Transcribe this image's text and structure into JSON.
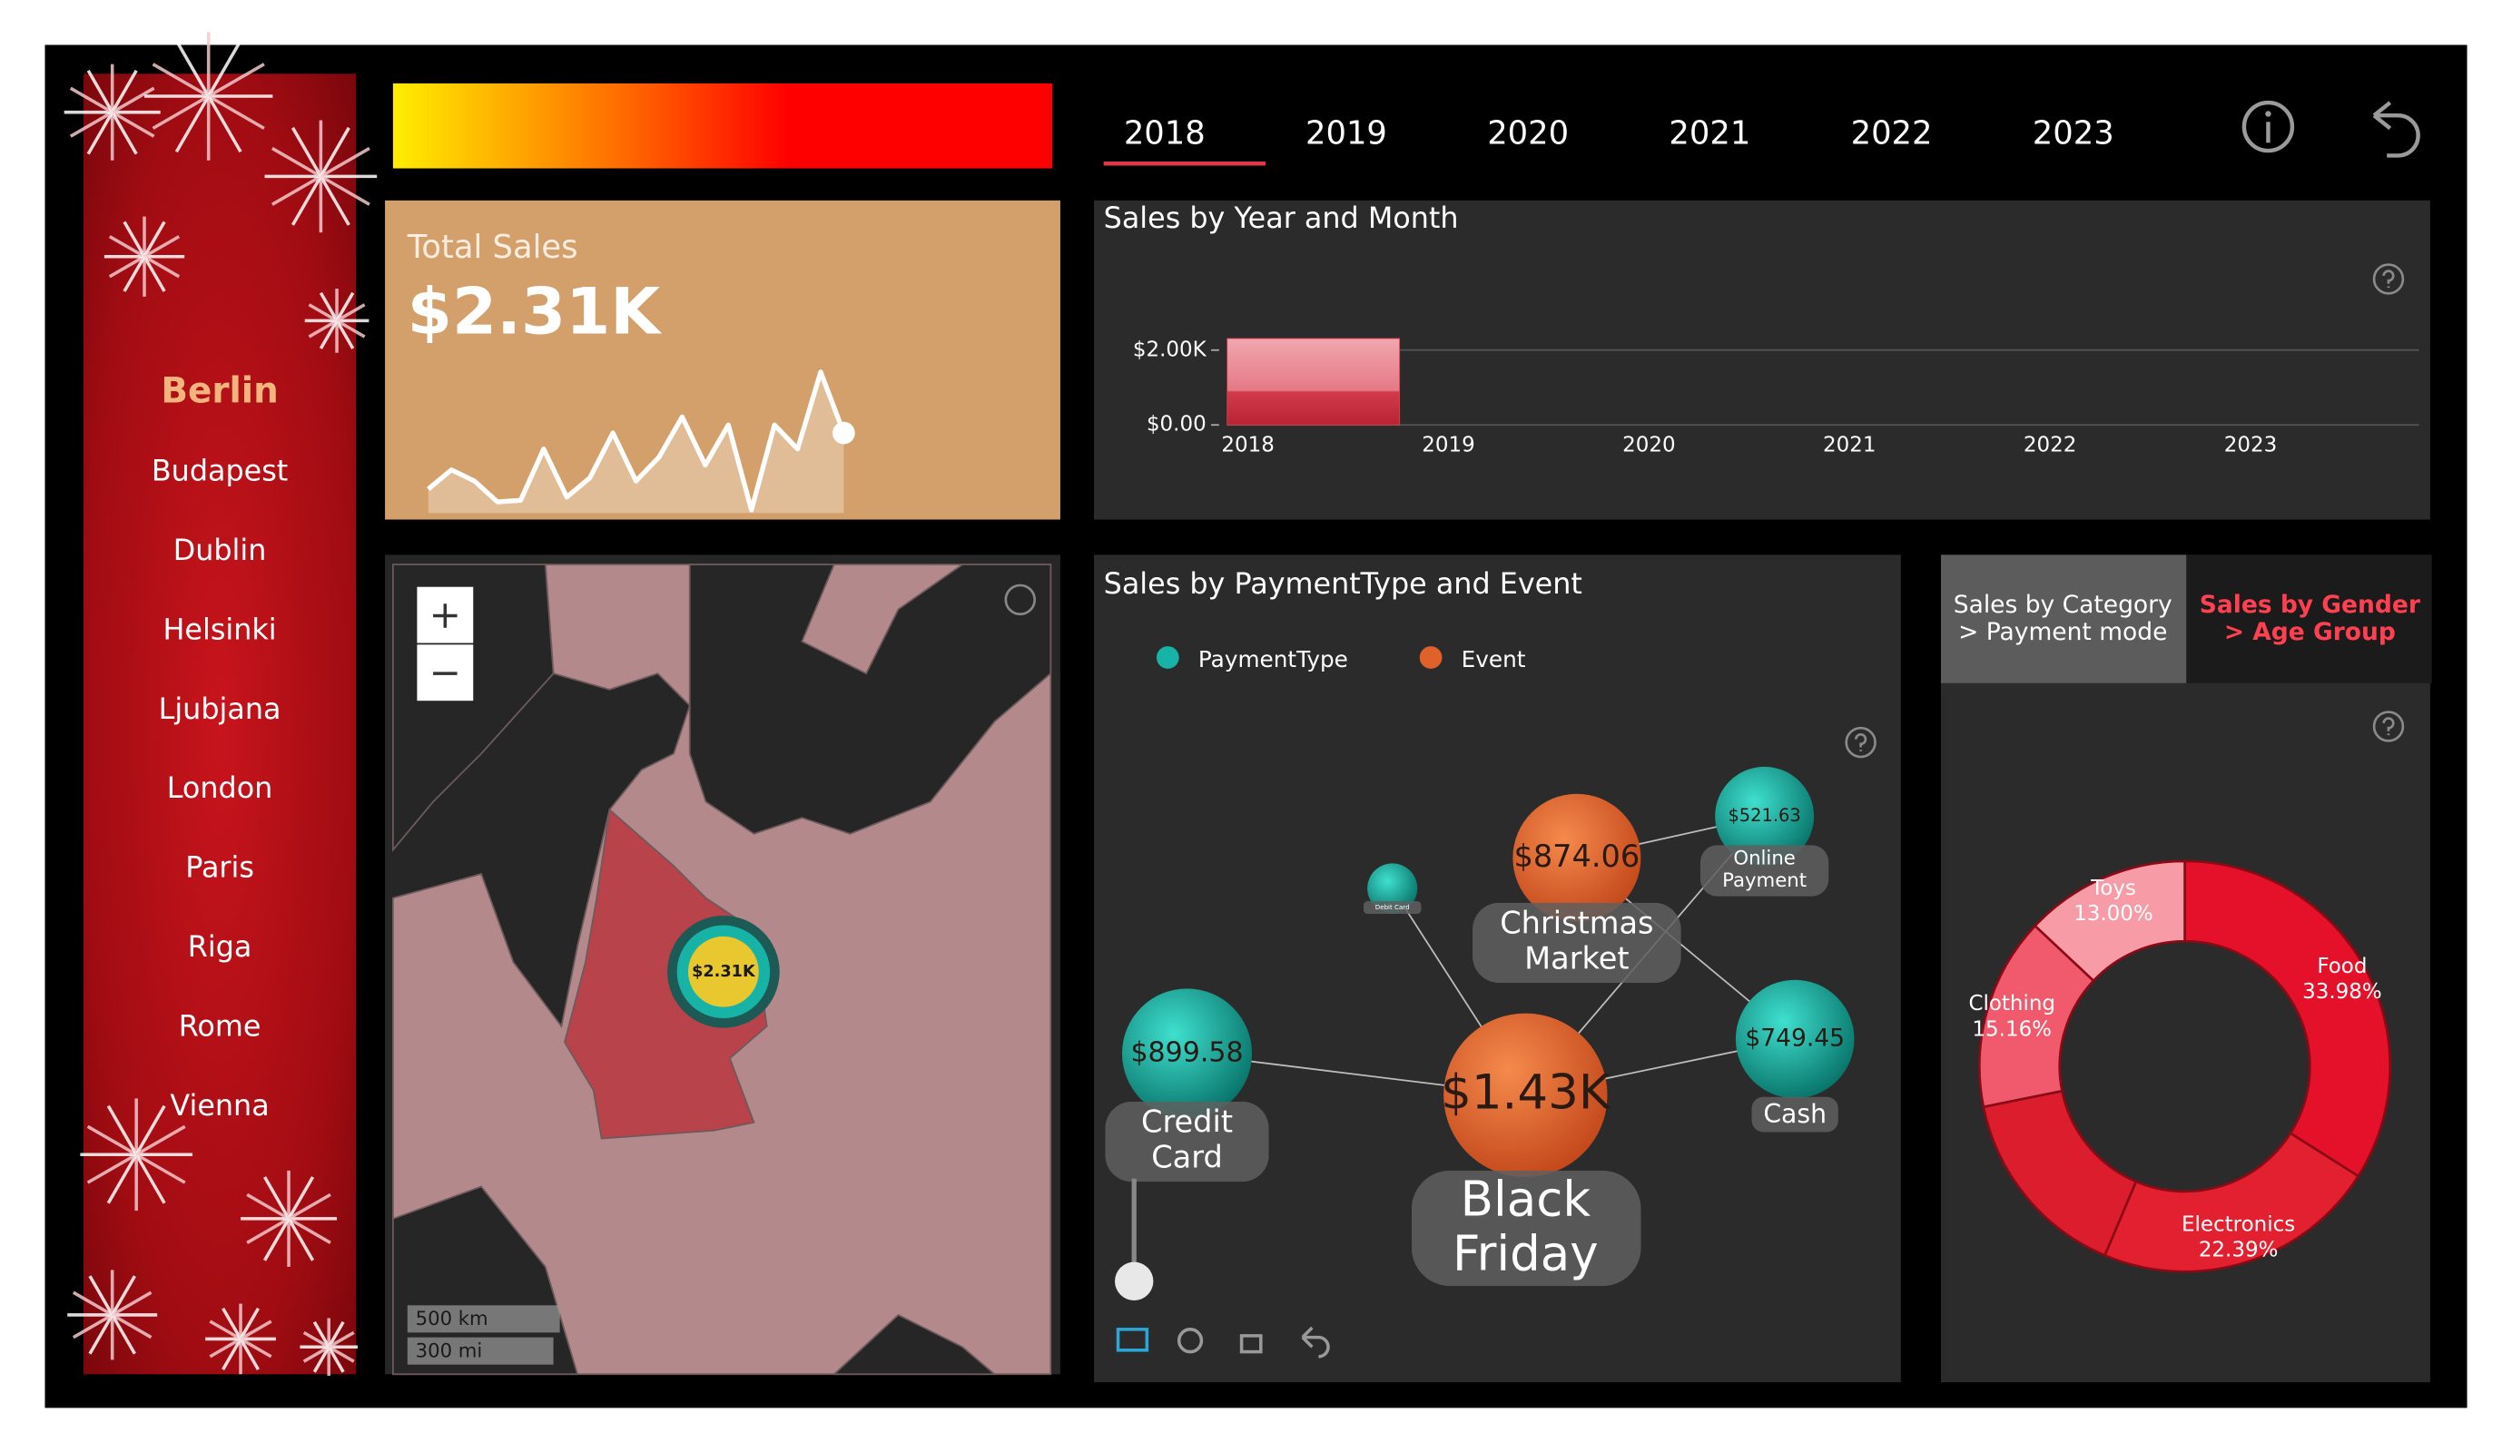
{
  "cities": [
    "Berlin",
    "Budapest",
    "Dublin",
    "Helsinki",
    "Ljubjana",
    "London",
    "Paris",
    "Riga",
    "Rome",
    "Vienna"
  ],
  "years": [
    "2018",
    "2019",
    "2020",
    "2021",
    "2022",
    "2023"
  ],
  "kpi": {
    "label": "Total Sales",
    "value": "$2.31K"
  },
  "map": {
    "bubble_label": "$2.31K",
    "scale": [
      "500 km",
      "300 mi"
    ]
  },
  "tabs": [
    "Sales by Category > Payment mode",
    "Sales by Gender > Age Group"
  ],
  "chart_data": [
    {
      "type": "area",
      "color": "#ffffff",
      "values": [
        15,
        27,
        20,
        7,
        8,
        40,
        10,
        22,
        50,
        20,
        35,
        60,
        30,
        55,
        2,
        55,
        40,
        88,
        50
      ],
      "ylim": [
        0,
        100
      ]
    },
    {
      "type": "bar",
      "title": "Sales by Year and Month",
      "categories": [
        "2018",
        "2019",
        "2020",
        "2021",
        "2022",
        "2023"
      ],
      "values": [
        2310,
        null,
        null,
        null,
        null,
        null
      ],
      "color": "#d8404f",
      "ylim": [
        0,
        2400
      ],
      "yticks": [
        {
          "value": 0,
          "label": "$0.00"
        },
        {
          "value": 2000,
          "label": "$2.00K"
        }
      ],
      "grid": true
    },
    {
      "type": "network",
      "title": "Sales by PaymentType and Event",
      "series": [
        {
          "name": "PaymentType",
          "color": "#17b3a6"
        },
        {
          "name": "Event",
          "color": "#e0622a"
        }
      ],
      "nodes": [
        {
          "name": "Black Friday",
          "group": "Event",
          "value": 1430,
          "value_label": "$1.43K"
        },
        {
          "name": "Christmas Market",
          "group": "Event",
          "value": 874.06,
          "value_label": "$874.06"
        },
        {
          "name": "Credit Card",
          "group": "PaymentType",
          "value": 899.58,
          "value_label": "$899.58"
        },
        {
          "name": "Online Payment",
          "group": "PaymentType",
          "value": 521.63,
          "value_label": "$521.63"
        },
        {
          "name": "Cash",
          "group": "PaymentType",
          "value": 749.45,
          "value_label": "$749.45"
        },
        {
          "name": "Debit Card",
          "group": "PaymentType",
          "value": 133.4,
          "value_label": null
        }
      ],
      "links": [
        {
          "source": "Black Friday",
          "target": "Credit Card"
        },
        {
          "source": "Black Friday",
          "target": "Cash"
        },
        {
          "source": "Black Friday",
          "target": "Online Payment"
        },
        {
          "source": "Black Friday",
          "target": "Debit Card"
        },
        {
          "source": "Christmas Market",
          "target": "Online Payment"
        },
        {
          "source": "Christmas Market",
          "target": "Cash"
        }
      ]
    },
    {
      "type": "donut",
      "categories": [
        "Food",
        "Electronics",
        null,
        "Clothing",
        "Toys"
      ],
      "values": [
        33.98,
        22.39,
        15.47,
        15.16,
        13.0
      ],
      "value_labels": [
        "33.98%",
        "22.39%",
        null,
        "15.16%",
        "13.00%"
      ],
      "colors": [
        "#e5112a",
        "#e2202f",
        "#dc1d2d",
        "#f05a6c",
        "#f79ba7"
      ]
    }
  ]
}
